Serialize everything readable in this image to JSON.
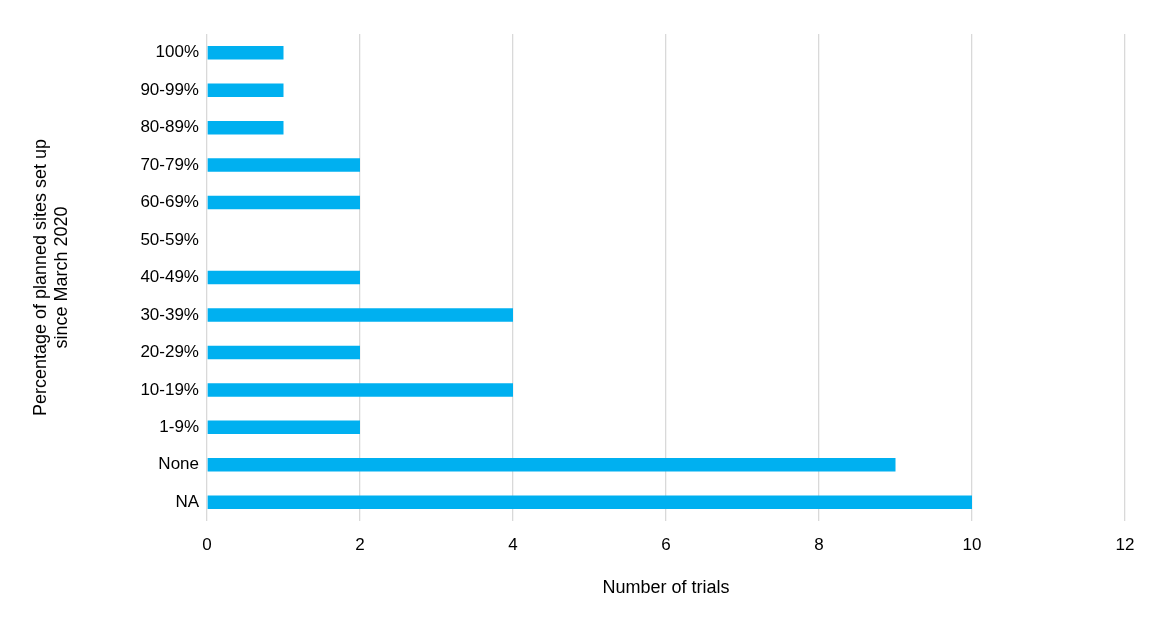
{
  "chart_data": {
    "type": "bar",
    "orientation": "horizontal",
    "xlabel": "Number of trials",
    "ylabel": "Percentage of planned sites set up since March 2020",
    "categories": [
      "100%",
      "90-99%",
      "80-89%",
      "70-79%",
      "60-69%",
      "50-59%",
      "40-49%",
      "30-39%",
      "20-29%",
      "10-19%",
      "1-9%",
      "None",
      "NA"
    ],
    "values": [
      1,
      1,
      1,
      2,
      2,
      0,
      2,
      4,
      2,
      4,
      2,
      9,
      10
    ],
    "color": "#00b0f0",
    "xlim": [
      0,
      12
    ],
    "xticks": [
      0,
      2,
      4,
      6,
      8,
      10,
      12
    ],
    "grid": "x",
    "legend": false
  }
}
